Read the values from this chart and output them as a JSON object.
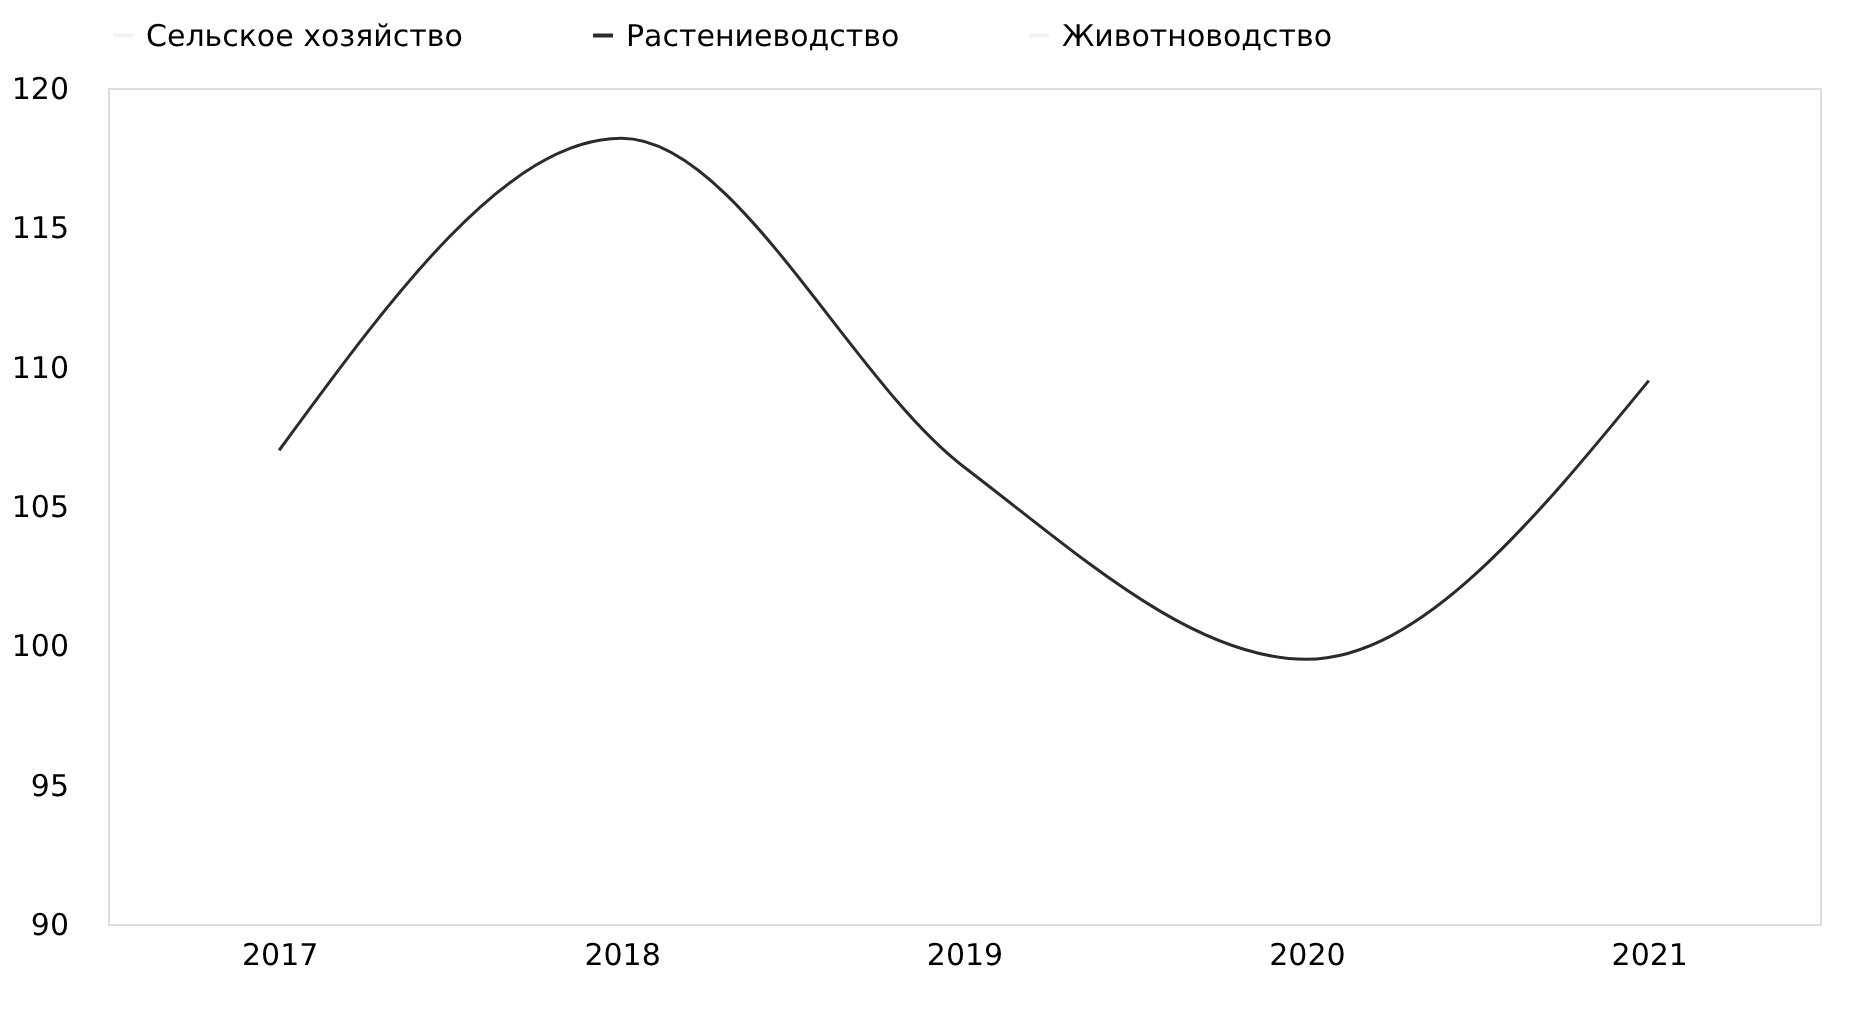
{
  "chart_data": {
    "type": "line",
    "categories": [
      "2017",
      "2018",
      "2019",
      "2020",
      "2021"
    ],
    "series": [
      {
        "name": "Сельское хозяйство",
        "color": "#f2f2f2",
        "values": [
          null,
          null,
          null,
          null,
          null
        ]
      },
      {
        "name": "Растениеводство",
        "color": "#2b2b2b",
        "values": [
          107.0,
          118.2,
          106.4,
          99.5,
          109.5
        ]
      },
      {
        "name": "Животноводство",
        "color": "#f2f2f2",
        "values": [
          null,
          null,
          null,
          null,
          null
        ]
      }
    ],
    "ylim": [
      90,
      120
    ],
    "yticks": [
      90,
      95,
      100,
      105,
      110,
      115,
      120
    ],
    "grid": false,
    "legend": "top",
    "marker": "none",
    "line_style": "solid"
  }
}
